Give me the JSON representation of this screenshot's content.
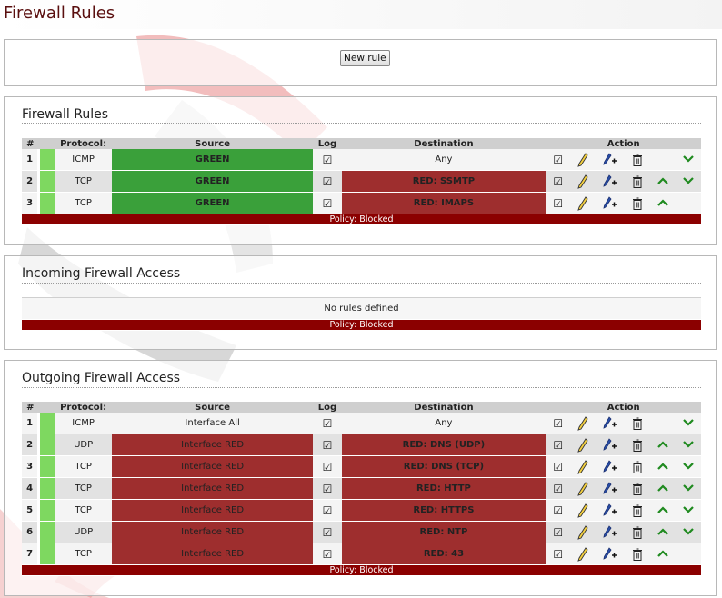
{
  "page": {
    "title": "Firewall Rules"
  },
  "new_rule_button": "New rule",
  "columns": {
    "num": "#",
    "protocol": "Protocol:",
    "source": "Source",
    "log": "Log",
    "destination": "Destination",
    "action": "Action"
  },
  "icons": {
    "checkbox": "checkbox-checked-icon",
    "edit": "pencil-edit-icon",
    "copy": "copy-rule-icon",
    "remove": "trash-icon",
    "up": "chevron-up-icon",
    "down": "chevron-down-icon"
  },
  "colors": {
    "green": "#3aa03a",
    "red": "#9e2e2e",
    "policy": "#8b0000",
    "title": "#5a0f0f",
    "arrow": "#1f8a1f"
  },
  "sections": {
    "firewall": {
      "title": "Firewall Rules",
      "policy": "Policy: Blocked",
      "rules": [
        {
          "num": "1",
          "protocol": "ICMP",
          "source": "GREEN",
          "destination": "Any",
          "up": false,
          "down": true
        },
        {
          "num": "2",
          "protocol": "TCP",
          "source": "GREEN",
          "destination": "RED: SSMTP",
          "up": true,
          "down": true
        },
        {
          "num": "3",
          "protocol": "TCP",
          "source": "GREEN",
          "destination": "RED: IMAPS",
          "up": true,
          "down": false
        }
      ]
    },
    "incoming": {
      "title": "Incoming Firewall Access",
      "no_rules": "No rules defined",
      "policy": "Policy: Blocked"
    },
    "outgoing": {
      "title": "Outgoing Firewall Access",
      "policy": "Policy: Blocked",
      "rules": [
        {
          "num": "1",
          "protocol": "ICMP",
          "source": "Interface All",
          "destination": "Any",
          "up": false,
          "down": true
        },
        {
          "num": "2",
          "protocol": "UDP",
          "source": "Interface RED",
          "destination": "RED: DNS (UDP)",
          "up": true,
          "down": true
        },
        {
          "num": "3",
          "protocol": "TCP",
          "source": "Interface RED",
          "destination": "RED: DNS (TCP)",
          "up": true,
          "down": true
        },
        {
          "num": "4",
          "protocol": "TCP",
          "source": "Interface RED",
          "destination": "RED: HTTP",
          "up": true,
          "down": true
        },
        {
          "num": "5",
          "protocol": "TCP",
          "source": "Interface RED",
          "destination": "RED: HTTPS",
          "up": true,
          "down": true
        },
        {
          "num": "6",
          "protocol": "UDP",
          "source": "Interface RED",
          "destination": "RED: NTP",
          "up": true,
          "down": true
        },
        {
          "num": "7",
          "protocol": "TCP",
          "source": "Interface RED",
          "destination": "RED: 43",
          "up": true,
          "down": false
        }
      ]
    }
  }
}
